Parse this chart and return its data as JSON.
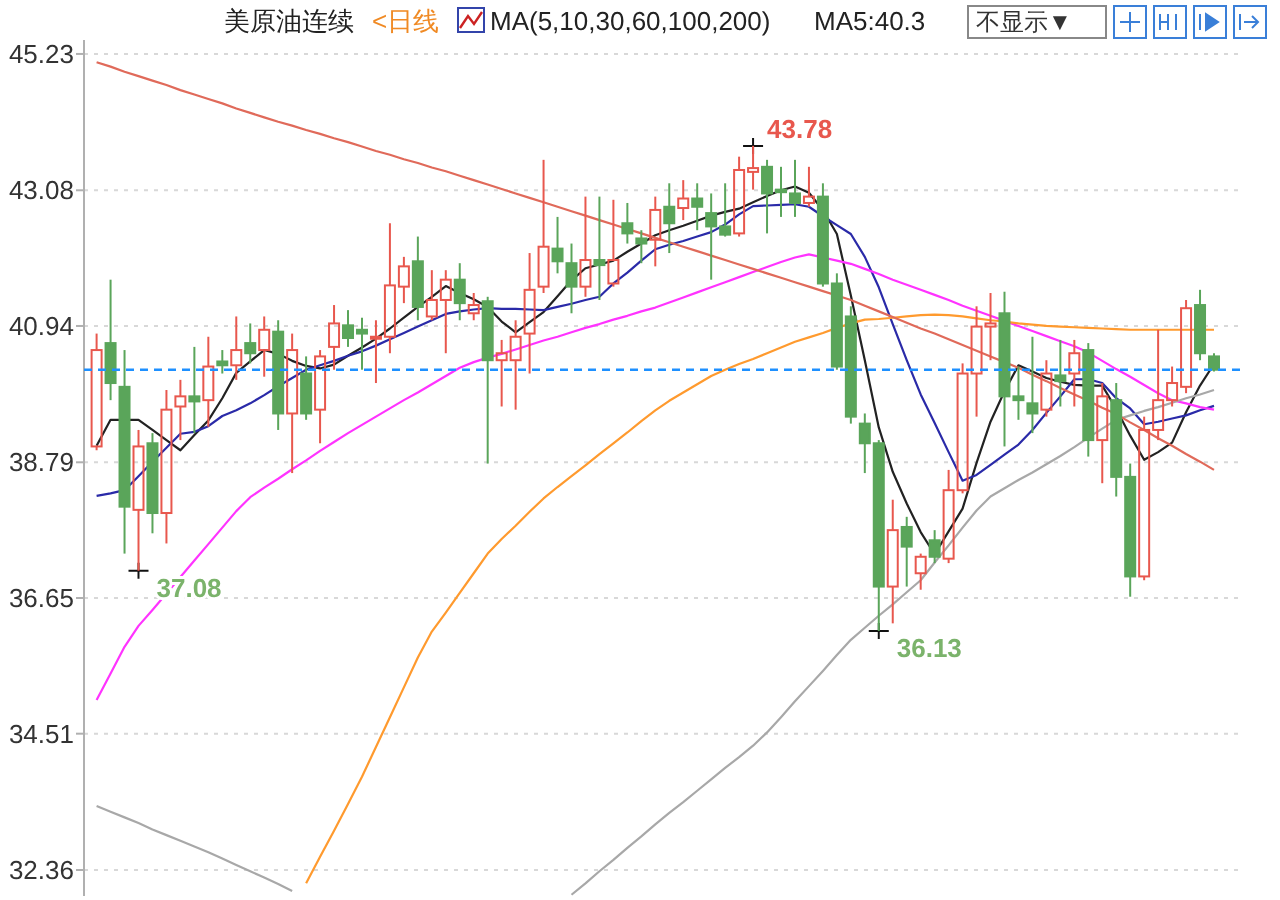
{
  "chart_data": {
    "type": "candlestick",
    "title": "美原油连续",
    "annotations": [
      "<日线",
      "MA(5,10,30,60,100,200)",
      "MA5:40.3",
      "不显示▼",
      "43.78",
      "37.08",
      "36.13"
    ],
    "categories": [
      null,
      null,
      null,
      null,
      null,
      null,
      null,
      null,
      null,
      null,
      null,
      null,
      null,
      null,
      null,
      null,
      null,
      null,
      null,
      null,
      null,
      null,
      null,
      null,
      null,
      null,
      null,
      null,
      null,
      null,
      null,
      null,
      null,
      null,
      null,
      null,
      null,
      null,
      null,
      null,
      null,
      null,
      null,
      null,
      null,
      null,
      null,
      null,
      null,
      null,
      null,
      null,
      null,
      null,
      null,
      null,
      null,
      null,
      null,
      null,
      null,
      null,
      null,
      null,
      null,
      null,
      null,
      null,
      null,
      null,
      null,
      null,
      null,
      null,
      null,
      null,
      null,
      null,
      null,
      null,
      null
    ],
    "ohlc": [
      [
        39.04,
        40.82,
        38.98,
        40.56
      ],
      [
        40.67,
        41.67,
        39.77,
        40.04
      ],
      [
        39.98,
        40.56,
        37.35,
        38.09
      ],
      [
        38.04,
        39.3,
        37.08,
        39.04
      ],
      [
        39.09,
        39.25,
        37.67,
        37.99
      ],
      [
        37.99,
        39.93,
        37.51,
        39.62
      ],
      [
        39.67,
        40.09,
        39.14,
        39.83
      ],
      [
        39.83,
        40.61,
        39.25,
        39.75
      ],
      [
        39.77,
        40.77,
        39.35,
        40.3
      ],
      [
        40.38,
        40.56,
        40.19,
        40.32
      ],
      [
        40.32,
        41.09,
        40.09,
        40.56
      ],
      [
        40.67,
        40.98,
        40.35,
        40.51
      ],
      [
        40.56,
        41.09,
        40.14,
        40.88
      ],
      [
        40.85,
        41.03,
        39.3,
        39.56
      ],
      [
        39.56,
        40.82,
        38.62,
        40.56
      ],
      [
        40.19,
        40.46,
        39.46,
        39.56
      ],
      [
        39.62,
        40.56,
        39.09,
        40.46
      ],
      [
        40.61,
        41.27,
        40.25,
        40.98
      ],
      [
        40.95,
        41.19,
        40.61,
        40.75
      ],
      [
        40.88,
        41.07,
        40.25,
        40.82
      ],
      [
        40.75,
        41.03,
        40.04,
        40.77
      ],
      [
        40.77,
        42.56,
        40.51,
        41.58
      ],
      [
        41.56,
        42.03,
        41.3,
        41.88
      ],
      [
        41.96,
        42.35,
        41.03,
        41.24
      ],
      [
        41.09,
        41.82,
        41.03,
        41.35
      ],
      [
        41.35,
        41.82,
        40.51,
        41.67
      ],
      [
        41.67,
        41.93,
        41.03,
        41.3
      ],
      [
        41.14,
        41.46,
        41.03,
        41.27
      ],
      [
        41.33,
        41.4,
        38.77,
        40.4
      ],
      [
        40.4,
        40.72,
        39.67,
        40.51
      ],
      [
        40.4,
        41.03,
        39.62,
        40.77
      ],
      [
        40.82,
        42.09,
        40.19,
        41.51
      ],
      [
        41.56,
        43.56,
        41.46,
        42.19
      ],
      [
        42.16,
        42.66,
        41.77,
        41.96
      ],
      [
        41.93,
        42.24,
        41.14,
        41.56
      ],
      [
        41.56,
        42.98,
        41.4,
        41.98
      ],
      [
        41.98,
        42.98,
        41.35,
        41.9
      ],
      [
        41.61,
        42.93,
        41.56,
        41.98
      ],
      [
        42.56,
        42.88,
        42.24,
        42.4
      ],
      [
        42.32,
        42.45,
        41.93,
        42.24
      ],
      [
        42.3,
        42.98,
        41.88,
        42.77
      ],
      [
        42.82,
        43.19,
        42.09,
        42.56
      ],
      [
        42.8,
        43.24,
        42.61,
        42.95
      ],
      [
        42.95,
        43.19,
        42.45,
        42.82
      ],
      [
        42.72,
        43.03,
        41.67,
        42.51
      ],
      [
        42.51,
        43.19,
        42.35,
        42.38
      ],
      [
        42.4,
        43.61,
        42.35,
        43.4
      ],
      [
        43.37,
        43.78,
        43.09,
        43.43
      ],
      [
        43.45,
        43.56,
        42.4,
        43.03
      ],
      [
        43.09,
        43.45,
        42.66,
        43.05
      ],
      [
        43.03,
        43.56,
        42.66,
        42.88
      ],
      [
        42.88,
        43.45,
        42.82,
        42.98
      ],
      [
        42.98,
        43.19,
        41.56,
        41.61
      ],
      [
        41.61,
        41.77,
        40.25,
        40.3
      ],
      [
        41.09,
        41.25,
        39.4,
        39.51
      ],
      [
        39.4,
        39.56,
        38.62,
        39.09
      ],
      [
        39.09,
        39.14,
        36.13,
        36.83
      ],
      [
        36.83,
        38.2,
        36.25,
        37.72
      ],
      [
        37.77,
        37.93,
        36.83,
        37.46
      ],
      [
        37.04,
        37.35,
        36.78,
        37.3
      ],
      [
        37.56,
        37.72,
        37.2,
        37.3
      ],
      [
        37.27,
        38.67,
        37.2,
        38.35
      ],
      [
        38.35,
        40.35,
        38.3,
        40.19
      ],
      [
        40.19,
        41.25,
        39.51,
        40.93
      ],
      [
        40.93,
        41.46,
        40.4,
        40.98
      ],
      [
        41.14,
        41.48,
        39.04,
        39.83
      ],
      [
        39.83,
        40.3,
        39.46,
        39.77
      ],
      [
        39.72,
        40.77,
        39.25,
        39.56
      ],
      [
        39.62,
        40.4,
        39.51,
        40.19
      ],
      [
        40.16,
        40.72,
        39.67,
        40.07
      ],
      [
        40.19,
        40.72,
        39.67,
        40.51
      ],
      [
        40.56,
        40.67,
        38.88,
        39.14
      ],
      [
        39.14,
        40.04,
        38.46,
        39.83
      ],
      [
        39.77,
        40.04,
        38.25,
        38.56
      ],
      [
        38.56,
        38.77,
        36.67,
        36.99
      ],
      [
        36.99,
        39.51,
        36.93,
        39.3
      ],
      [
        39.3,
        40.88,
        39.14,
        39.77
      ],
      [
        39.77,
        40.3,
        39.67,
        40.04
      ],
      [
        39.98,
        41.35,
        39.88,
        41.22
      ],
      [
        41.27,
        41.51,
        40.4,
        40.51
      ],
      [
        40.46,
        40.51,
        40.22,
        40.25
      ]
    ],
    "series": [
      {
        "type": "line",
        "color": "#222222",
        "values": [
          39.05,
          39.46,
          39.46,
          39.46,
          39.3,
          39.14,
          38.98,
          39.22,
          39.45,
          39.8,
          40.2,
          40.38,
          40.56,
          40.5,
          40.39,
          40.31,
          40.27,
          40.33,
          40.47,
          40.6,
          40.74,
          40.9,
          41.07,
          41.24,
          41.4,
          41.57,
          41.46,
          41.36,
          41.24,
          41.01,
          40.84,
          41.0,
          41.16,
          41.41,
          41.66,
          41.85,
          41.91,
          41.97,
          42.11,
          42.24,
          42.37,
          42.45,
          42.52,
          42.6,
          42.68,
          42.74,
          42.79,
          42.89,
          42.99,
          43.08,
          43.14,
          43.04,
          42.77,
          42.39,
          41.42,
          40.4,
          39.34,
          38.64,
          38.14,
          37.69,
          37.34,
          37.7,
          38.06,
          38.78,
          39.43,
          39.91,
          40.32,
          40.22,
          40.12,
          40.06,
          40.01,
          40.0,
          40.0,
          39.63,
          39.21,
          38.83,
          38.95,
          39.1,
          39.58,
          40.0,
          40.34
        ]
      },
      {
        "type": "line",
        "color": "#2a2aa8",
        "values": [
          38.26,
          38.3,
          38.35,
          38.57,
          38.8,
          39.02,
          39.24,
          39.27,
          39.36,
          39.52,
          39.61,
          39.72,
          39.85,
          39.99,
          40.12,
          40.25,
          40.32,
          40.39,
          40.47,
          40.54,
          40.63,
          40.73,
          40.83,
          40.93,
          41.03,
          41.13,
          41.17,
          41.2,
          41.22,
          41.21,
          41.21,
          41.2,
          41.19,
          41.24,
          41.29,
          41.35,
          41.4,
          41.61,
          41.78,
          41.97,
          42.15,
          42.22,
          42.28,
          42.35,
          42.42,
          42.54,
          42.7,
          42.83,
          42.84,
          42.85,
          42.86,
          42.82,
          42.67,
          42.53,
          42.39,
          42.03,
          41.55,
          40.97,
          40.4,
          39.86,
          39.41,
          38.95,
          38.5,
          38.59,
          38.75,
          38.91,
          39.07,
          39.3,
          39.57,
          39.83,
          40.1,
          40.1,
          40.04,
          39.8,
          39.64,
          39.39,
          39.43,
          39.48,
          39.53,
          39.61,
          39.68
        ]
      },
      {
        "type": "line",
        "color": "#ff33ff",
        "values": [
          35.04,
          35.46,
          35.88,
          36.21,
          36.46,
          36.72,
          36.98,
          37.24,
          37.5,
          37.76,
          38.02,
          38.24,
          38.39,
          38.53,
          38.68,
          38.82,
          38.97,
          39.11,
          39.25,
          39.38,
          39.51,
          39.64,
          39.77,
          39.89,
          40.02,
          40.15,
          40.28,
          40.37,
          40.44,
          40.5,
          40.57,
          40.64,
          40.71,
          40.77,
          40.84,
          40.91,
          40.97,
          41.04,
          41.1,
          41.17,
          41.23,
          41.31,
          41.39,
          41.47,
          41.55,
          41.63,
          41.71,
          41.79,
          41.87,
          41.95,
          42.02,
          42.07,
          42.02,
          41.97,
          41.92,
          41.84,
          41.76,
          41.67,
          41.59,
          41.51,
          41.43,
          41.35,
          41.26,
          41.18,
          41.1,
          41.02,
          40.94,
          40.86,
          40.78,
          40.7,
          40.62,
          40.52,
          40.39,
          40.26,
          40.14,
          40.01,
          39.88,
          39.77,
          39.72,
          39.66,
          39.62
        ]
      },
      {
        "type": "line",
        "color": "#ff9a2e",
        "values": [
          null,
          null,
          null,
          null,
          null,
          null,
          null,
          null,
          null,
          null,
          null,
          null,
          null,
          null,
          null,
          32.15,
          32.57,
          32.98,
          33.4,
          33.83,
          34.3,
          34.77,
          35.24,
          35.71,
          36.12,
          36.42,
          36.73,
          37.04,
          37.35,
          37.58,
          37.79,
          38.01,
          38.22,
          38.4,
          38.57,
          38.74,
          38.92,
          39.09,
          39.26,
          39.44,
          39.61,
          39.76,
          39.89,
          40.02,
          40.15,
          40.25,
          40.34,
          40.42,
          40.51,
          40.6,
          40.69,
          40.76,
          40.83,
          40.91,
          40.98,
          41.04,
          41.05,
          41.07,
          41.09,
          41.11,
          41.12,
          41.11,
          41.09,
          41.06,
          41.03,
          41.01,
          40.98,
          40.96,
          40.94,
          40.93,
          40.92,
          40.91,
          40.9,
          40.89,
          40.88,
          40.88,
          40.88,
          40.88,
          40.88,
          40.88,
          40.88
        ]
      },
      {
        "type": "line",
        "color": "#a8a8a8",
        "values": [
          33.37,
          33.28,
          33.19,
          33.1,
          33.0,
          32.91,
          32.82,
          32.73,
          32.64,
          32.54,
          32.44,
          32.34,
          32.24,
          32.14,
          32.03,
          null,
          null,
          null,
          null,
          null,
          null,
          null,
          null,
          null,
          null,
          null,
          null,
          null,
          null,
          null,
          null,
          null,
          null,
          null,
          31.97,
          32.15,
          32.34,
          32.52,
          32.71,
          32.89,
          33.08,
          33.26,
          33.43,
          33.61,
          33.79,
          33.97,
          34.14,
          34.32,
          34.53,
          34.77,
          35.02,
          35.26,
          35.5,
          35.75,
          35.99,
          36.18,
          36.37,
          36.55,
          36.74,
          36.93,
          37.21,
          37.48,
          37.76,
          38.03,
          38.25,
          38.38,
          38.51,
          38.63,
          38.76,
          38.89,
          39.03,
          39.18,
          39.32,
          39.46,
          39.53,
          39.6,
          39.66,
          39.73,
          39.8,
          39.86,
          39.93
        ]
      },
      {
        "type": "line",
        "color": "#e06a5a",
        "values": [
          45.1,
          45.03,
          44.95,
          44.88,
          44.81,
          44.74,
          44.66,
          44.59,
          44.52,
          44.45,
          44.37,
          44.3,
          44.23,
          44.16,
          44.1,
          44.03,
          43.97,
          43.9,
          43.84,
          43.77,
          43.7,
          43.64,
          43.57,
          43.51,
          43.44,
          43.38,
          43.31,
          43.24,
          43.17,
          43.1,
          43.03,
          42.96,
          42.89,
          42.82,
          42.75,
          42.68,
          42.61,
          42.54,
          42.47,
          42.4,
          42.33,
          42.26,
          42.19,
          42.12,
          42.05,
          41.98,
          41.91,
          41.84,
          41.77,
          41.7,
          41.63,
          41.56,
          41.49,
          41.42,
          41.35,
          41.26,
          41.17,
          41.08,
          40.99,
          40.9,
          40.82,
          40.73,
          40.64,
          40.55,
          40.46,
          40.37,
          40.28,
          40.17,
          40.07,
          39.96,
          39.86,
          39.76,
          39.65,
          39.55,
          39.42,
          39.3,
          39.17,
          39.05,
          38.92,
          38.8,
          38.67
        ]
      }
    ],
    "ylim": [
      31.95,
      45.45
    ],
    "yticks": [
      32.36,
      34.51,
      36.65,
      38.79,
      40.94,
      43.08,
      45.23
    ],
    "grid": "y",
    "tick_labels": "y",
    "ref_lines": [
      {
        "axis": "y",
        "value": 40.25,
        "color": "#1e90ff",
        "line_style": "dashed"
      }
    ]
  }
}
